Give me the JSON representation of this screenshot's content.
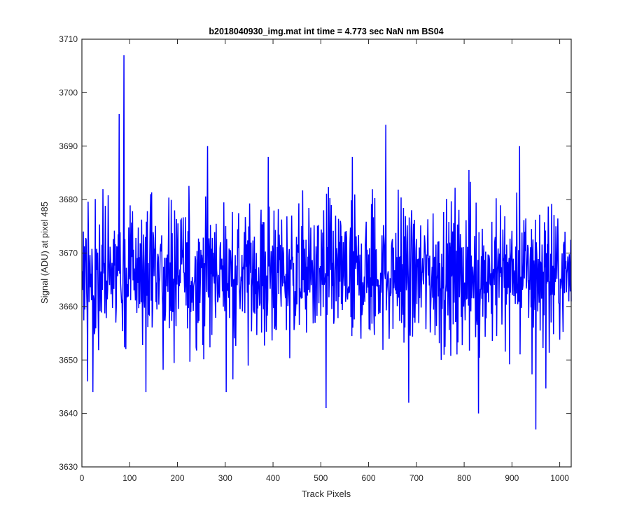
{
  "chart_data": {
    "type": "line",
    "title": "b2018040930_img.mat int time = 4.773 sec  NaN nm BS04",
    "xlabel": "Track Pixels",
    "ylabel": "Signal (ADU) at pixel 485",
    "xlim": [
      0,
      1024
    ],
    "ylim": [
      3630,
      3710
    ],
    "x_ticks": [
      "0",
      "100",
      "200",
      "300",
      "400",
      "500",
      "600",
      "700",
      "800",
      "900",
      "1000"
    ],
    "y_ticks": [
      "3630",
      "3640",
      "3650",
      "3660",
      "3670",
      "3680",
      "3690",
      "3700",
      "3710"
    ],
    "grid": false,
    "line_color": "#0000ff",
    "series": [
      {
        "x_start": 1,
        "x_step": 1,
        "count": 1024,
        "baseline": 3666,
        "typical_range": [
          3648,
          3684
        ],
        "peaks": [
          {
            "x": 78,
            "y": 3696
          },
          {
            "x": 88,
            "y": 3707
          },
          {
            "x": 263,
            "y": 3690
          },
          {
            "x": 390,
            "y": 3688
          },
          {
            "x": 636,
            "y": 3694
          },
          {
            "x": 916,
            "y": 3690
          }
        ],
        "troughs": [
          {
            "x": 12,
            "y": 3646
          },
          {
            "x": 134,
            "y": 3644
          },
          {
            "x": 511,
            "y": 3641
          },
          {
            "x": 684,
            "y": 3642
          },
          {
            "x": 830,
            "y": 3640
          },
          {
            "x": 950,
            "y": 3637
          }
        ]
      }
    ]
  }
}
